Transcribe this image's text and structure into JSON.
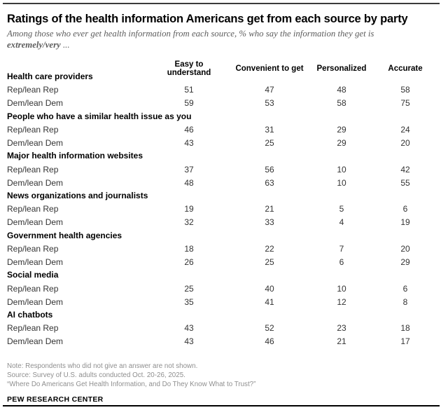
{
  "header": {
    "title": "Ratings of the health information Americans get from each source by party",
    "subtitle_line1": "Among those who ever get health information from each source, % who say the information they get is",
    "subtitle_bold": "extremely/very",
    "subtitle_ellipsis": " ..."
  },
  "chart_data": {
    "type": "table",
    "title": "Ratings of the health information Americans get from each source by party",
    "subtitle": "Among those who ever get health information from each source, % who say the information they get is extremely/very ...",
    "unit": "% extremely/very",
    "columns": [
      "Easy to understand",
      "Convenient to get",
      "Personalized",
      "Accurate"
    ],
    "sections": [
      {
        "label": "Health care providers",
        "rows": [
          {
            "label": "Rep/lean Rep",
            "values": [
              51,
              47,
              48,
              58
            ]
          },
          {
            "label": "Dem/lean Dem",
            "values": [
              59,
              53,
              58,
              75
            ]
          }
        ]
      },
      {
        "label": "People who have a similar health issue as you",
        "rows": [
          {
            "label": "Rep/lean Rep",
            "values": [
              46,
              31,
              29,
              24
            ]
          },
          {
            "label": "Dem/lean Dem",
            "values": [
              43,
              25,
              29,
              20
            ]
          }
        ]
      },
      {
        "label": "Major health information websites",
        "rows": [
          {
            "label": "Rep/lean Rep",
            "values": [
              37,
              56,
              10,
              42
            ]
          },
          {
            "label": "Dem/lean Dem",
            "values": [
              48,
              63,
              10,
              55
            ]
          }
        ]
      },
      {
        "label": "News organizations and journalists",
        "rows": [
          {
            "label": "Rep/lean Rep",
            "values": [
              19,
              21,
              5,
              6
            ]
          },
          {
            "label": "Dem/lean Dem",
            "values": [
              32,
              33,
              4,
              19
            ]
          }
        ]
      },
      {
        "label": "Government health agencies",
        "rows": [
          {
            "label": "Rep/lean Rep",
            "values": [
              18,
              22,
              7,
              20
            ]
          },
          {
            "label": "Dem/lean Dem",
            "values": [
              26,
              25,
              6,
              29
            ]
          }
        ]
      },
      {
        "label": "Social media",
        "rows": [
          {
            "label": "Rep/lean Rep",
            "values": [
              25,
              40,
              10,
              6
            ]
          },
          {
            "label": "Dem/lean Dem",
            "values": [
              35,
              41,
              12,
              8
            ]
          }
        ]
      },
      {
        "label": "AI chatbots",
        "rows": [
          {
            "label": "Rep/lean Rep",
            "values": [
              43,
              52,
              23,
              18
            ]
          },
          {
            "label": "Dem/lean Dem",
            "values": [
              43,
              46,
              21,
              17
            ]
          }
        ]
      }
    ]
  },
  "footer": {
    "note": "Note: Respondents who did not give an answer are not shown.",
    "source": "Source: Survey of U.S. adults conducted Oct. 20-26, 2025.",
    "quote": "“Where Do Americans Get Health Information, and Do They Know What to Trust?”",
    "brand": "PEW RESEARCH CENTER"
  },
  "colors": {
    "top_rule": "#3b3b3b",
    "bottom_rule": "#000000",
    "title_text": "#000000",
    "subtitle_text": "#5d5d5d",
    "body_text": "#333333",
    "note_text": "#8f8f8f"
  }
}
